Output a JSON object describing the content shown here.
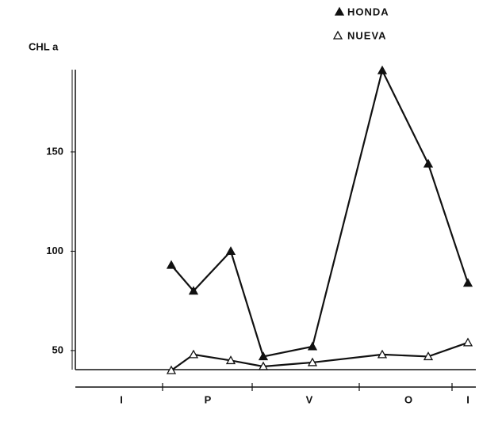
{
  "chart_data": {
    "type": "line",
    "y_label": "CHL a",
    "categories": [
      null,
      null,
      null,
      null,
      null,
      null,
      null,
      null
    ],
    "season_labels": [
      "I",
      "P",
      "V",
      "O",
      "I"
    ],
    "series": [
      {
        "name": "HONDA",
        "color": "#111111",
        "marker": "filled-triangle",
        "values": [
          93,
          80,
          100,
          47,
          52,
          191,
          144,
          84
        ]
      },
      {
        "name": "NUEVA",
        "color": "#111111",
        "marker": "open-triangle",
        "values": [
          40,
          48,
          45,
          42,
          44,
          48,
          47,
          54
        ]
      }
    ],
    "ylim": [
      38,
      195
    ],
    "yticks": [
      50,
      100,
      150
    ],
    "grid": false
  }
}
